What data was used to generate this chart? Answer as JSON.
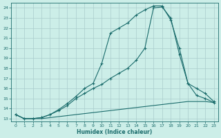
{
  "xlabel": "Humidex (Indice chaleur)",
  "bg_color": "#cceee8",
  "grid_color": "#aacccc",
  "line_color": "#1a6b6b",
  "xlim_min": -0.5,
  "xlim_max": 23.5,
  "ylim_min": 12.7,
  "ylim_max": 24.5,
  "xticks": [
    0,
    1,
    2,
    3,
    4,
    5,
    6,
    7,
    8,
    9,
    10,
    11,
    12,
    13,
    14,
    15,
    16,
    17,
    18,
    19,
    20,
    21,
    22,
    23
  ],
  "yticks": [
    13,
    14,
    15,
    16,
    17,
    18,
    19,
    20,
    21,
    22,
    23,
    24
  ],
  "line1_x": [
    0,
    1,
    2,
    3,
    4,
    5,
    6,
    7,
    8,
    9,
    10,
    11,
    12,
    13,
    14,
    15,
    16,
    17,
    18,
    19,
    20,
    21,
    22,
    23
  ],
  "line1_y": [
    13.4,
    13.0,
    13.0,
    13.0,
    13.1,
    13.2,
    13.3,
    13.4,
    13.5,
    13.6,
    13.7,
    13.8,
    13.9,
    14.0,
    14.1,
    14.2,
    14.3,
    14.4,
    14.5,
    14.6,
    14.7,
    14.7,
    14.7,
    14.6
  ],
  "line2_x": [
    0,
    1,
    2,
    3,
    4,
    5,
    6,
    7,
    8,
    9,
    10,
    11,
    12,
    13,
    14,
    15,
    16,
    17,
    18,
    19,
    20,
    21,
    22,
    23
  ],
  "line2_y": [
    13.4,
    13.0,
    13.0,
    13.1,
    13.4,
    13.8,
    14.3,
    15.0,
    15.5,
    16.0,
    16.4,
    17.0,
    17.5,
    18.0,
    18.8,
    20.0,
    24.0,
    24.1,
    23.0,
    19.4,
    16.5,
    15.3,
    15.0,
    14.6
  ],
  "line3_x": [
    0,
    1,
    2,
    3,
    4,
    5,
    6,
    7,
    8,
    9,
    10,
    11,
    12,
    13,
    14,
    15,
    16,
    17,
    18,
    19,
    20,
    21,
    22,
    23
  ],
  "line3_y": [
    13.4,
    13.0,
    13.0,
    13.1,
    13.4,
    13.9,
    14.5,
    15.2,
    16.0,
    16.5,
    18.5,
    21.5,
    22.0,
    22.5,
    23.3,
    23.8,
    24.2,
    24.2,
    22.8,
    20.0,
    16.5,
    16.0,
    15.5,
    14.7
  ]
}
